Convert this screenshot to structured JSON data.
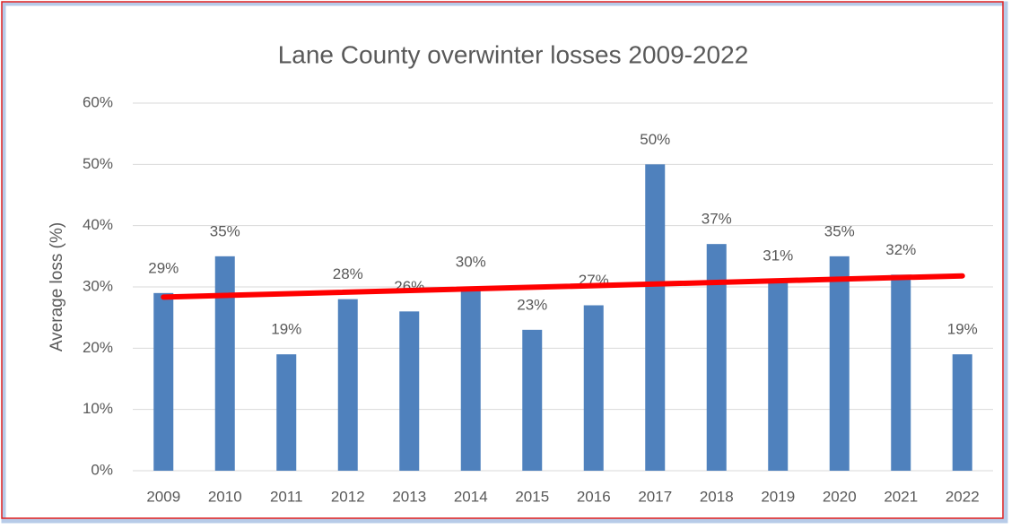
{
  "chart_data": {
    "type": "bar",
    "title": "Lane County overwinter losses 2009-2022",
    "y_label": "Average loss (%)",
    "categories": [
      "2009",
      "2010",
      "2011",
      "2012",
      "2013",
      "2014",
      "2015",
      "2016",
      "2017",
      "2018",
      "2019",
      "2020",
      "2021",
      "2022"
    ],
    "values": [
      29,
      35,
      19,
      28,
      26,
      30,
      23,
      27,
      50,
      37,
      31,
      35,
      32,
      19
    ],
    "value_labels": [
      "29%",
      "35%",
      "19%",
      "28%",
      "26%",
      "30%",
      "23%",
      "27%",
      "50%",
      "37%",
      "31%",
      "35%",
      "32%",
      "19%"
    ],
    "color": "#4f81bd",
    "trendline": {
      "kind": "linear",
      "color": "#ff0000"
    },
    "ylim": [
      0,
      60
    ],
    "yticks": [
      {
        "value": 0,
        "label": "0%"
      },
      {
        "value": 10,
        "label": "10%"
      },
      {
        "value": 20,
        "label": "20%"
      },
      {
        "value": 30,
        "label": "30%"
      },
      {
        "value": 40,
        "label": "40%"
      },
      {
        "value": 50,
        "label": "50%"
      },
      {
        "value": 60,
        "label": "60%"
      }
    ],
    "grid": true
  }
}
